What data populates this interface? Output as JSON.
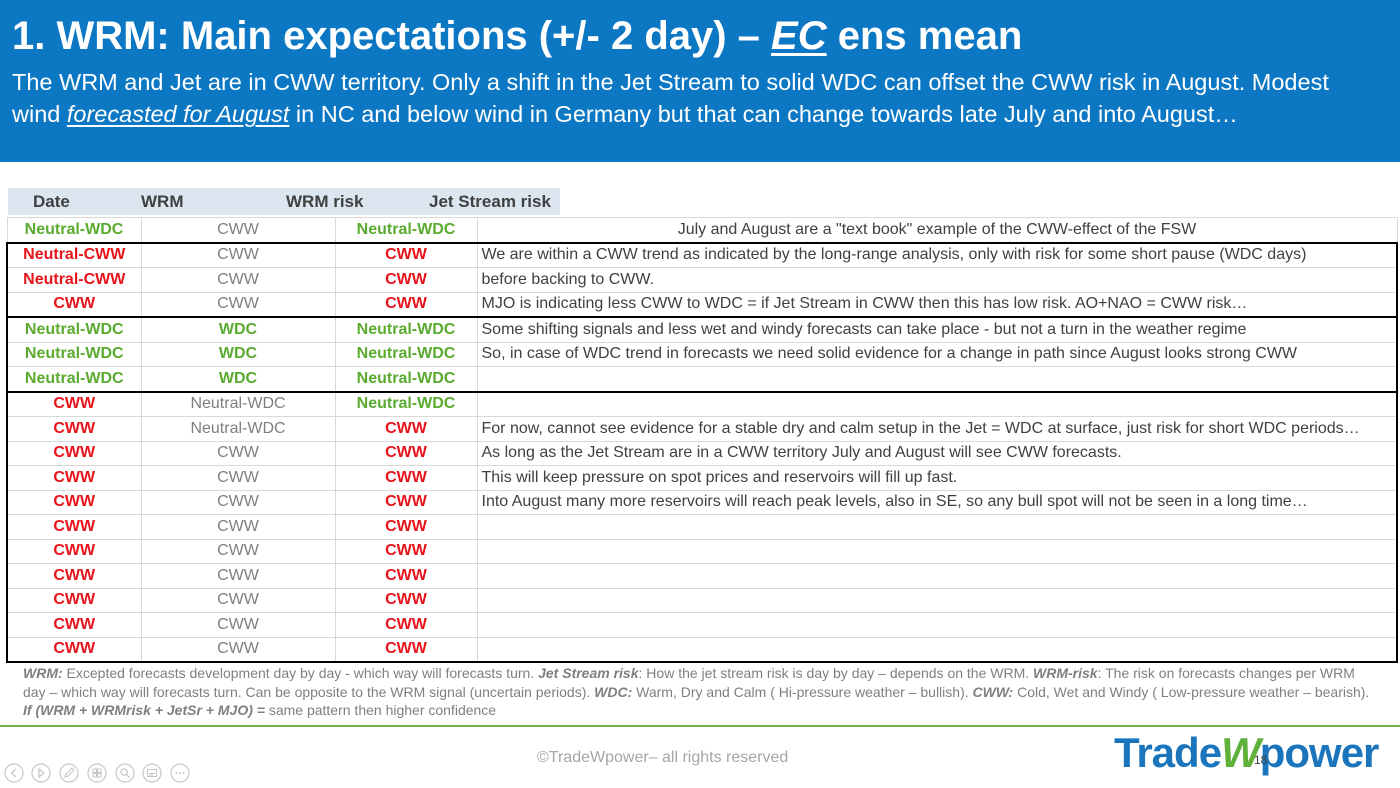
{
  "title": {
    "pre": "1. WRM: Main expectations (+/- 2 day) – ",
    "emph": "EC",
    "post": " ens mean"
  },
  "subtitle": {
    "pre": "The WRM and Jet are in CWW territory. Only a shift in the Jet Stream to solid WDC can offset the CWW risk in August. Modest wind ",
    "emph": "forecasted for August",
    "post": " in NC and below wind in Germany but that can change towards late July and into August…"
  },
  "colors": {
    "header_band": "#0c78c4",
    "green": "#5aab2f",
    "red": "#e8141b",
    "gray": "#7f7f7f",
    "brand_blue": "#1b75bc",
    "brand_green": "#5fb13a",
    "divider": "#6cb33f"
  },
  "table": {
    "headers": [
      "Date",
      "WRM",
      "WRM risk",
      "Jet Stream risk"
    ],
    "lead_row": {
      "cells": [
        {
          "text": "Neutral-WDC",
          "tone": "green"
        },
        {
          "text": "CWW",
          "tone": "gray"
        },
        {
          "text": "Neutral-WDC",
          "tone": "green"
        }
      ],
      "comment": "July and August are a \"text book\" example of the CWW-effect of the FSW"
    },
    "groups": [
      [
        {
          "cells": [
            {
              "text": "Neutral-CWW",
              "tone": "red"
            },
            {
              "text": "CWW",
              "tone": "gray"
            },
            {
              "text": "CWW",
              "tone": "red"
            }
          ],
          "comment": "We are within a CWW trend as indicated by the long-range analysis, only with risk for some short pause (WDC days)"
        },
        {
          "cells": [
            {
              "text": "Neutral-CWW",
              "tone": "red"
            },
            {
              "text": "CWW",
              "tone": "gray"
            },
            {
              "text": "CWW",
              "tone": "red"
            }
          ],
          "comment": "before backing to CWW."
        },
        {
          "cells": [
            {
              "text": "CWW",
              "tone": "red"
            },
            {
              "text": "CWW",
              "tone": "gray"
            },
            {
              "text": "CWW",
              "tone": "red"
            }
          ],
          "comment": "MJO is indicating less CWW to WDC = if Jet Stream in CWW then this has low risk. AO+NAO = CWW risk…"
        }
      ],
      [
        {
          "cells": [
            {
              "text": "Neutral-WDC",
              "tone": "green"
            },
            {
              "text": "WDC",
              "tone": "green"
            },
            {
              "text": "Neutral-WDC",
              "tone": "green"
            }
          ],
          "comment": "Some shifting signals and less wet and windy forecasts can take place - but not a turn in the weather regime"
        },
        {
          "cells": [
            {
              "text": "Neutral-WDC",
              "tone": "green"
            },
            {
              "text": "WDC",
              "tone": "green"
            },
            {
              "text": "Neutral-WDC",
              "tone": "green"
            }
          ],
          "comment": "So, in case of WDC trend in forecasts we need solid evidence for a change in path since August looks strong CWW"
        },
        {
          "cells": [
            {
              "text": "Neutral-WDC",
              "tone": "green"
            },
            {
              "text": "WDC",
              "tone": "green"
            },
            {
              "text": "Neutral-WDC",
              "tone": "green"
            }
          ]
        }
      ],
      [
        {
          "cells": [
            {
              "text": "CWW",
              "tone": "red"
            },
            {
              "text": "Neutral-WDC",
              "tone": "gray"
            },
            {
              "text": "Neutral-WDC",
              "tone": "green"
            }
          ]
        },
        {
          "cells": [
            {
              "text": "CWW",
              "tone": "red"
            },
            {
              "text": "Neutral-WDC",
              "tone": "gray"
            },
            {
              "text": "CWW",
              "tone": "red"
            }
          ],
          "comment": "For now, cannot see evidence for a stable dry and calm setup in the Jet = WDC at surface, just risk for short WDC periods…"
        },
        {
          "cells": [
            {
              "text": "CWW",
              "tone": "red"
            },
            {
              "text": "CWW",
              "tone": "gray"
            },
            {
              "text": "CWW",
              "tone": "red"
            }
          ],
          "comment": "As long as the Jet Stream are in a CWW territory July and August will see CWW forecasts."
        },
        {
          "cells": [
            {
              "text": "CWW",
              "tone": "red"
            },
            {
              "text": "CWW",
              "tone": "gray"
            },
            {
              "text": "CWW",
              "tone": "red"
            }
          ],
          "comment": "This will keep pressure on spot prices and reservoirs will fill up fast."
        },
        {
          "cells": [
            {
              "text": "CWW",
              "tone": "red"
            },
            {
              "text": "CWW",
              "tone": "gray"
            },
            {
              "text": "CWW",
              "tone": "red"
            }
          ],
          "comment": "Into August many more reservoirs will reach peak levels, also in SE, so any bull spot will not be seen in a long time…"
        },
        {
          "cells": [
            {
              "text": "CWW",
              "tone": "red"
            },
            {
              "text": "CWW",
              "tone": "gray"
            },
            {
              "text": "CWW",
              "tone": "red"
            }
          ]
        },
        {
          "cells": [
            {
              "text": "CWW",
              "tone": "red"
            },
            {
              "text": "CWW",
              "tone": "gray"
            },
            {
              "text": "CWW",
              "tone": "red"
            }
          ]
        },
        {
          "cells": [
            {
              "text": "CWW",
              "tone": "red"
            },
            {
              "text": "CWW",
              "tone": "gray"
            },
            {
              "text": "CWW",
              "tone": "red"
            }
          ]
        },
        {
          "cells": [
            {
              "text": "CWW",
              "tone": "red"
            },
            {
              "text": "CWW",
              "tone": "gray"
            },
            {
              "text": "CWW",
              "tone": "red"
            }
          ]
        },
        {
          "cells": [
            {
              "text": "CWW",
              "tone": "red"
            },
            {
              "text": "CWW",
              "tone": "gray"
            },
            {
              "text": "CWW",
              "tone": "red"
            }
          ]
        },
        {
          "cells": [
            {
              "text": "CWW",
              "tone": "red"
            },
            {
              "text": "CWW",
              "tone": "gray"
            },
            {
              "text": "CWW",
              "tone": "red"
            }
          ]
        }
      ]
    ]
  },
  "footnote": {
    "items": [
      {
        "term": "WRM:",
        "text": " Excepted forecasts development day by day - which way will forecasts turn.  "
      },
      {
        "term": "Jet Stream risk",
        "text": ": How the jet stream risk is day by day – depends on the WRM. "
      },
      {
        "term": "WRM-risk",
        "text": ": The risk on forecasts changes per WRM day – which way will forecasts turn. Can be opposite to the WRM signal (uncertain periods). "
      },
      {
        "term": "WDC:",
        "text": " Warm, Dry and Calm ( Hi-pressure weather – bullish). "
      },
      {
        "term": "CWW:",
        "text": " Cold, Wet and Windy ( Low-pressure weather – bearish). "
      },
      {
        "term": "If (WRM + WRMrisk + JetSr + MJO) =",
        "text": " same pattern then higher confidence"
      }
    ]
  },
  "footer": {
    "copyright": "©TradeWpower– all rights reserved",
    "page_number": "18"
  },
  "logo": {
    "pre": "Trade",
    "mark": "W",
    "post": "power"
  },
  "nav_icons": [
    "previous-slide-icon",
    "next-slide-icon",
    "pen-icon",
    "slides-grid-icon",
    "zoom-icon",
    "subtitles-icon",
    "more-options-icon"
  ]
}
